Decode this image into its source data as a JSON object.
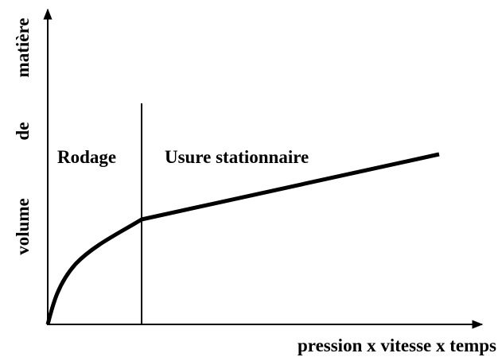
{
  "diagram": {
    "regions": [
      {
        "label": "Rodage"
      },
      {
        "label": "Usure stationnaire"
      }
    ],
    "x_axis": {
      "label": "pression x vitesse x temps"
    },
    "y_axis": {
      "words": [
        "volume",
        "de",
        "matière"
      ]
    }
  }
}
